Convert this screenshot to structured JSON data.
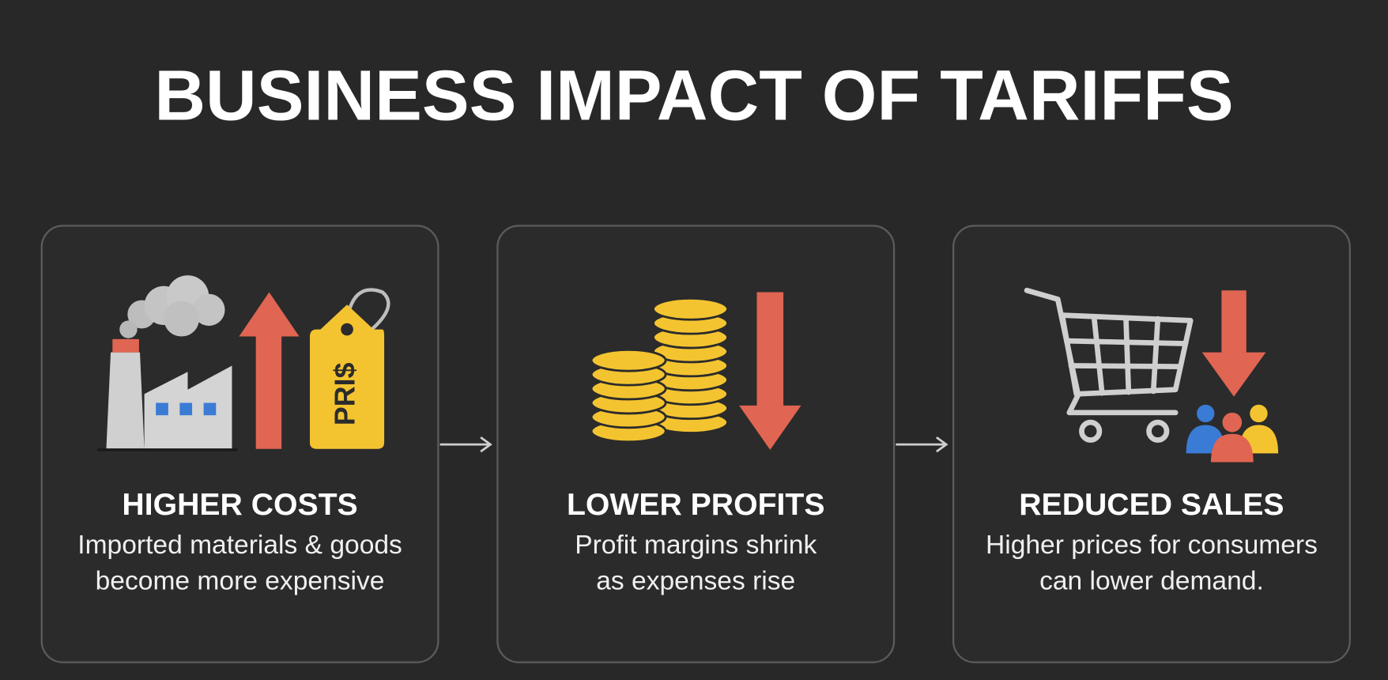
{
  "header": {
    "title": "BUSINESS IMPACT OF TARIFFS"
  },
  "panels": [
    {
      "heading": "HIGHER COSTS",
      "description": [
        "Imported materials & goods",
        "become more expensive"
      ],
      "icon_text": "PRI$"
    },
    {
      "heading": "LOWER PROFITS",
      "description": [
        "Profit margins shrink",
        "as expenses rise"
      ]
    },
    {
      "heading": "REDUCED SALES",
      "description": [
        "Higher prices for consumers",
        "can lower demand."
      ]
    }
  ]
}
